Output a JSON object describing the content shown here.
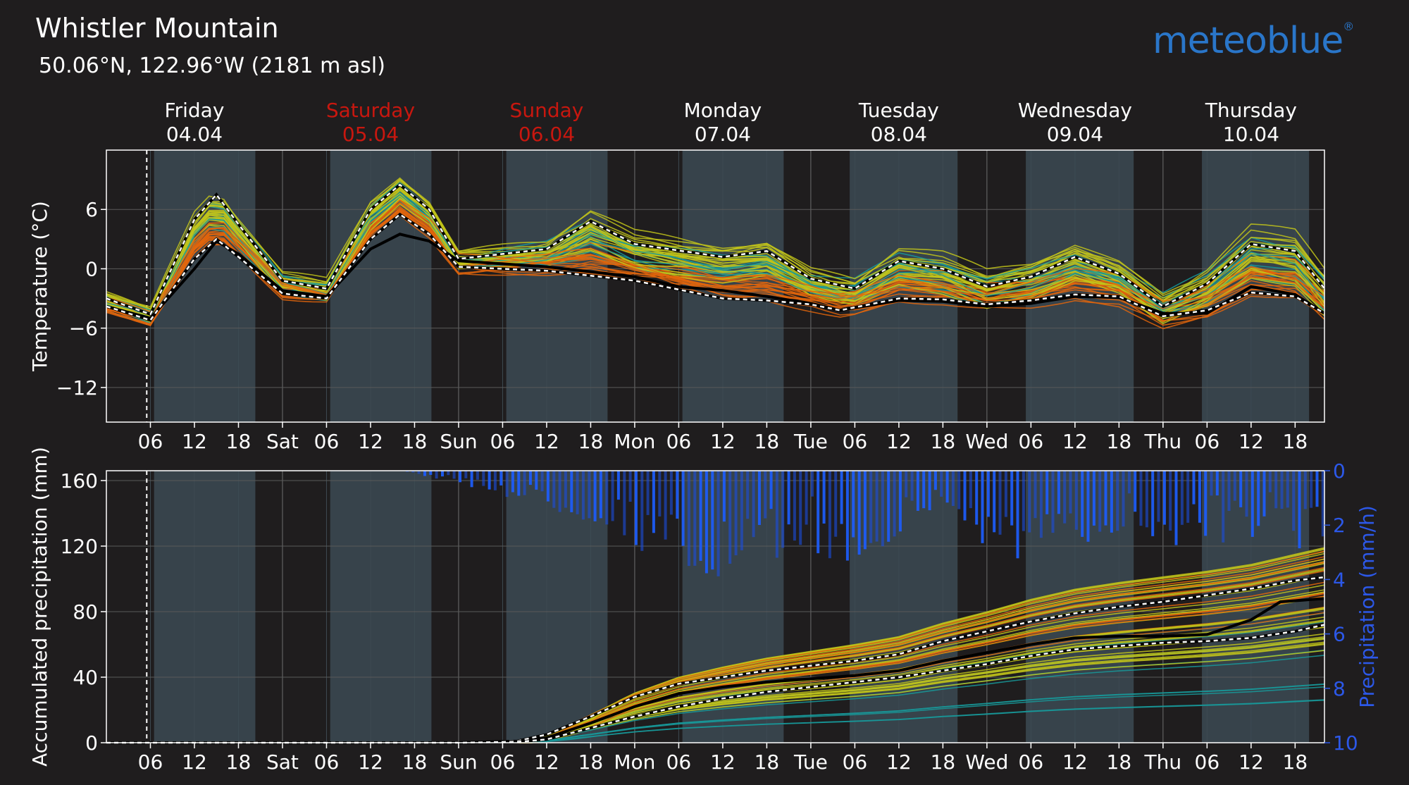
{
  "header": {
    "title": "Whistler Mountain",
    "subtitle": "50.06°N, 122.96°W (2181 m asl)",
    "brand": "meteoblue",
    "brand_mark": "®"
  },
  "colors": {
    "background": "#1f1d1e",
    "day_shade": "#37434b",
    "weekend_label": "#c8170f",
    "precip_bars": "#1a4fe0",
    "precip_axis": "#2c58e8",
    "member_yellow": "#c2c41a",
    "member_orange": "#e2650c",
    "member_teal": "#18999a"
  },
  "days": [
    {
      "name": "Friday",
      "date": "04.04",
      "weekend": false
    },
    {
      "name": "Saturday",
      "date": "05.04",
      "weekend": true
    },
    {
      "name": "Sunday",
      "date": "06.04",
      "weekend": true
    },
    {
      "name": "Monday",
      "date": "07.04",
      "weekend": false
    },
    {
      "name": "Tuesday",
      "date": "08.04",
      "weekend": false
    },
    {
      "name": "Wednesday",
      "date": "09.04",
      "weekend": false
    },
    {
      "name": "Thursday",
      "date": "10.04",
      "weekend": false
    }
  ],
  "x_ticks": [
    "06",
    "12",
    "18",
    "Sat",
    "06",
    "12",
    "18",
    "Sun",
    "06",
    "12",
    "18",
    "Mon",
    "06",
    "12",
    "18",
    "Tue",
    "06",
    "12",
    "18",
    "Wed",
    "06",
    "12",
    "18",
    "Thu",
    "06",
    "12",
    "18"
  ],
  "chart_data": [
    {
      "type": "line",
      "ylabel": "Temperature (°C)",
      "ylim": [
        -15.5,
        12
      ],
      "yticks": [
        6,
        0,
        -6,
        -12
      ],
      "ytick_labels": [
        "6",
        "0",
        "−6",
        "−12"
      ],
      "xlim_hours": [
        0,
        166
      ],
      "x_unit": "hours since 04.04 00:00",
      "now_line_hour": 5.5,
      "daylight_hours": [
        [
          6.5,
          20.3
        ],
        [
          30.5,
          44.3
        ],
        [
          54.5,
          68.3
        ],
        [
          78.5,
          92.3
        ],
        [
          101.3,
          116
        ],
        [
          125.3,
          140
        ],
        [
          149.3,
          163.9
        ]
      ],
      "grid": true,
      "series": [
        {
          "role": "black median",
          "x": [
            0,
            6,
            12,
            15,
            18,
            24,
            30,
            36,
            40,
            44,
            48,
            60,
            72,
            78,
            84,
            90,
            96,
            100,
            108,
            114,
            120,
            126,
            132,
            138,
            144,
            150,
            156,
            162,
            166
          ],
          "y": [
            -3.8,
            -5.0,
            0.0,
            2.8,
            1.5,
            -2.2,
            -2.8,
            2.0,
            3.5,
            2.8,
            0.8,
            0.2,
            -0.8,
            -1.8,
            -2.2,
            -2.8,
            -3.5,
            -4.2,
            -3.2,
            -3.3,
            -3.8,
            -3.5,
            -2.8,
            -2.9,
            -4.5,
            -4.5,
            -1.8,
            -2.6,
            -4.5
          ]
        },
        {
          "role": "upper dashed",
          "x": [
            0,
            6,
            12,
            15,
            18,
            24,
            30,
            36,
            40,
            44,
            48,
            60,
            66,
            72,
            84,
            90,
            96,
            102,
            108,
            114,
            120,
            126,
            132,
            138,
            144,
            150,
            156,
            162,
            166
          ],
          "y": [
            -3.0,
            -4.6,
            5.0,
            7.5,
            4.5,
            -1.2,
            -2.0,
            6.0,
            8.5,
            6.0,
            1.0,
            2.0,
            4.8,
            2.5,
            1.2,
            1.8,
            -1.0,
            -2.0,
            0.8,
            0.0,
            -1.8,
            -0.8,
            1.2,
            -0.5,
            -3.8,
            -1.5,
            2.5,
            1.8,
            -2.0
          ]
        },
        {
          "role": "lower dashed",
          "x": [
            0,
            6,
            12,
            15,
            18,
            24,
            30,
            36,
            40,
            44,
            48,
            60,
            72,
            84,
            90,
            96,
            100,
            108,
            114,
            120,
            126,
            132,
            138,
            144,
            150,
            156,
            162,
            166
          ],
          "y": [
            -3.8,
            -5.2,
            1.0,
            3.0,
            1.2,
            -2.5,
            -3.0,
            3.0,
            5.5,
            3.5,
            0.2,
            -0.2,
            -1.2,
            -3.0,
            -3.2,
            -3.6,
            -4.2,
            -3.0,
            -3.1,
            -3.6,
            -3.2,
            -2.6,
            -2.8,
            -4.8,
            -4.2,
            -2.4,
            -2.8,
            -4.5
          ]
        }
      ]
    },
    {
      "type": "line",
      "ylabel": "Accumulated precipitation (mm)",
      "ylabel_right": "Precipitation (mm/h)",
      "ylim": [
        0,
        166
      ],
      "yticks": [
        160,
        120,
        80,
        40,
        0
      ],
      "ylim_right": [
        10,
        0
      ],
      "yticks_right": [
        0,
        2,
        4,
        6,
        8,
        10
      ],
      "xlim_hours": [
        0,
        166
      ],
      "now_line_hour": 5.5,
      "grid": true,
      "series": [
        {
          "role": "black median",
          "x": [
            0,
            48,
            56,
            60,
            66,
            72,
            78,
            84,
            90,
            96,
            102,
            108,
            114,
            120,
            126,
            132,
            138,
            144,
            150,
            156,
            160,
            166
          ],
          "y": [
            0,
            0,
            0.5,
            3,
            12,
            22,
            30,
            34,
            37,
            39,
            41,
            44,
            50,
            55,
            60,
            64,
            65,
            65,
            66,
            75,
            86,
            88
          ]
        },
        {
          "role": "upper dashed",
          "x": [
            0,
            48,
            56,
            60,
            66,
            72,
            78,
            84,
            90,
            96,
            102,
            108,
            114,
            120,
            126,
            132,
            138,
            144,
            150,
            156,
            162,
            166
          ],
          "y": [
            0,
            0,
            1,
            5,
            16,
            28,
            36,
            40,
            44,
            47,
            50,
            54,
            62,
            68,
            74,
            79,
            83,
            86,
            90,
            94,
            99,
            101
          ]
        },
        {
          "role": "lower dashed",
          "x": [
            0,
            48,
            56,
            60,
            66,
            72,
            78,
            84,
            90,
            96,
            102,
            108,
            114,
            120,
            126,
            132,
            138,
            144,
            150,
            156,
            162,
            166
          ],
          "y": [
            0,
            0,
            0.5,
            2,
            9,
            16,
            22,
            27,
            31,
            34,
            37,
            40,
            44,
            48,
            53,
            57,
            59,
            61,
            62,
            64,
            68,
            72
          ]
        }
      ]
    }
  ]
}
